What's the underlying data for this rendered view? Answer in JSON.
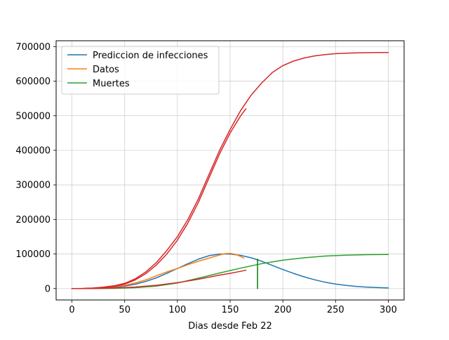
{
  "chart_data": {
    "type": "line",
    "title": "",
    "xlabel": "Dias desde Feb 22",
    "ylabel": "",
    "xlim": [
      -15,
      315
    ],
    "ylim": [
      -33000,
      717000
    ],
    "grid": true,
    "legend_position": "top-left",
    "x_ticks": [
      0,
      50,
      100,
      150,
      200,
      250,
      300
    ],
    "x_tick_labels": [
      "0",
      "50",
      "100",
      "150",
      "200",
      "250",
      "300"
    ],
    "y_ticks": [
      0,
      100000,
      200000,
      300000,
      400000,
      500000,
      600000,
      700000
    ],
    "y_tick_labels": [
      "0",
      "100000",
      "200000",
      "300000",
      "400000",
      "500000",
      "600000",
      "700000"
    ],
    "series": [
      {
        "name": "Prediccion de infecciones",
        "color": "#1f77b4",
        "in_legend": true,
        "x": [
          0,
          10,
          20,
          30,
          40,
          50,
          60,
          70,
          80,
          90,
          100,
          110,
          120,
          130,
          140,
          150,
          160,
          170,
          180,
          190,
          200,
          210,
          220,
          230,
          240,
          250,
          260,
          270,
          280,
          290,
          300
        ],
        "y": [
          0,
          200,
          700,
          1800,
          3800,
          7000,
          12500,
          20500,
          31000,
          44000,
          58000,
          72000,
          85000,
          95000,
          100000,
          100000,
          96000,
          89000,
          79000,
          67000,
          55000,
          44000,
          34000,
          25500,
          18500,
          13000,
          9000,
          6200,
          4200,
          2800,
          1800
        ]
      },
      {
        "name": "Datos",
        "color": "#ff7f0e",
        "in_legend": true,
        "x": [
          0,
          10,
          20,
          30,
          40,
          50,
          60,
          70,
          80,
          90,
          100,
          110,
          120,
          130,
          140,
          145,
          150,
          155,
          160,
          163
        ],
        "y": [
          0,
          200,
          800,
          2200,
          5000,
          9500,
          16000,
          25000,
          37000,
          48000,
          58000,
          69000,
          79000,
          88000,
          97000,
          101000,
          102000,
          99000,
          93000,
          88000
        ]
      },
      {
        "name": "Muertes",
        "color": "#2ca02c",
        "in_legend": true,
        "x": [
          0,
          20,
          40,
          60,
          80,
          100,
          120,
          140,
          160,
          180,
          200,
          220,
          240,
          260,
          280,
          300
        ],
        "y": [
          0,
          100,
          600,
          2500,
          7000,
          16000,
          30000,
          45000,
          59000,
          72000,
          82000,
          89000,
          94000,
          96500,
          98000,
          98500
        ]
      },
      {
        "name": "",
        "color": "#d62728",
        "in_legend": false,
        "x": [
          0,
          10,
          20,
          30,
          40,
          50,
          60,
          70,
          80,
          90,
          100,
          110,
          120,
          130,
          140,
          150,
          160,
          170,
          180,
          190,
          200,
          210,
          220,
          230,
          240,
          250,
          260,
          270,
          280,
          290,
          300
        ],
        "y": [
          0,
          400,
          1500,
          4000,
          8000,
          15000,
          28000,
          48000,
          75000,
          110000,
          150000,
          200000,
          260000,
          330000,
          400000,
          460000,
          515000,
          560000,
          595000,
          625000,
          645000,
          658000,
          667000,
          673000,
          677000,
          679500,
          681000,
          682000,
          682500,
          683000,
          683000
        ]
      },
      {
        "name": "",
        "color": "#d62728",
        "in_legend": false,
        "x": [
          0,
          10,
          20,
          30,
          40,
          50,
          60,
          70,
          80,
          90,
          100,
          110,
          120,
          130,
          140,
          150,
          160,
          165
        ],
        "y": [
          0,
          200,
          800,
          2500,
          6000,
          13000,
          25000,
          43000,
          68000,
          100000,
          140000,
          190000,
          250000,
          320000,
          390000,
          450000,
          500000,
          520000
        ]
      },
      {
        "name": "",
        "color": "#d62728",
        "in_legend": false,
        "x": [
          0,
          20,
          40,
          60,
          80,
          100,
          120,
          140,
          150,
          160,
          165
        ],
        "y": [
          0,
          300,
          1500,
          4500,
          9500,
          17000,
          27000,
          39000,
          44000,
          50000,
          53000
        ]
      },
      {
        "name": "",
        "color": "#008000",
        "in_legend": false,
        "x": [
          176,
          176
        ],
        "y": [
          0,
          85000
        ]
      }
    ]
  }
}
